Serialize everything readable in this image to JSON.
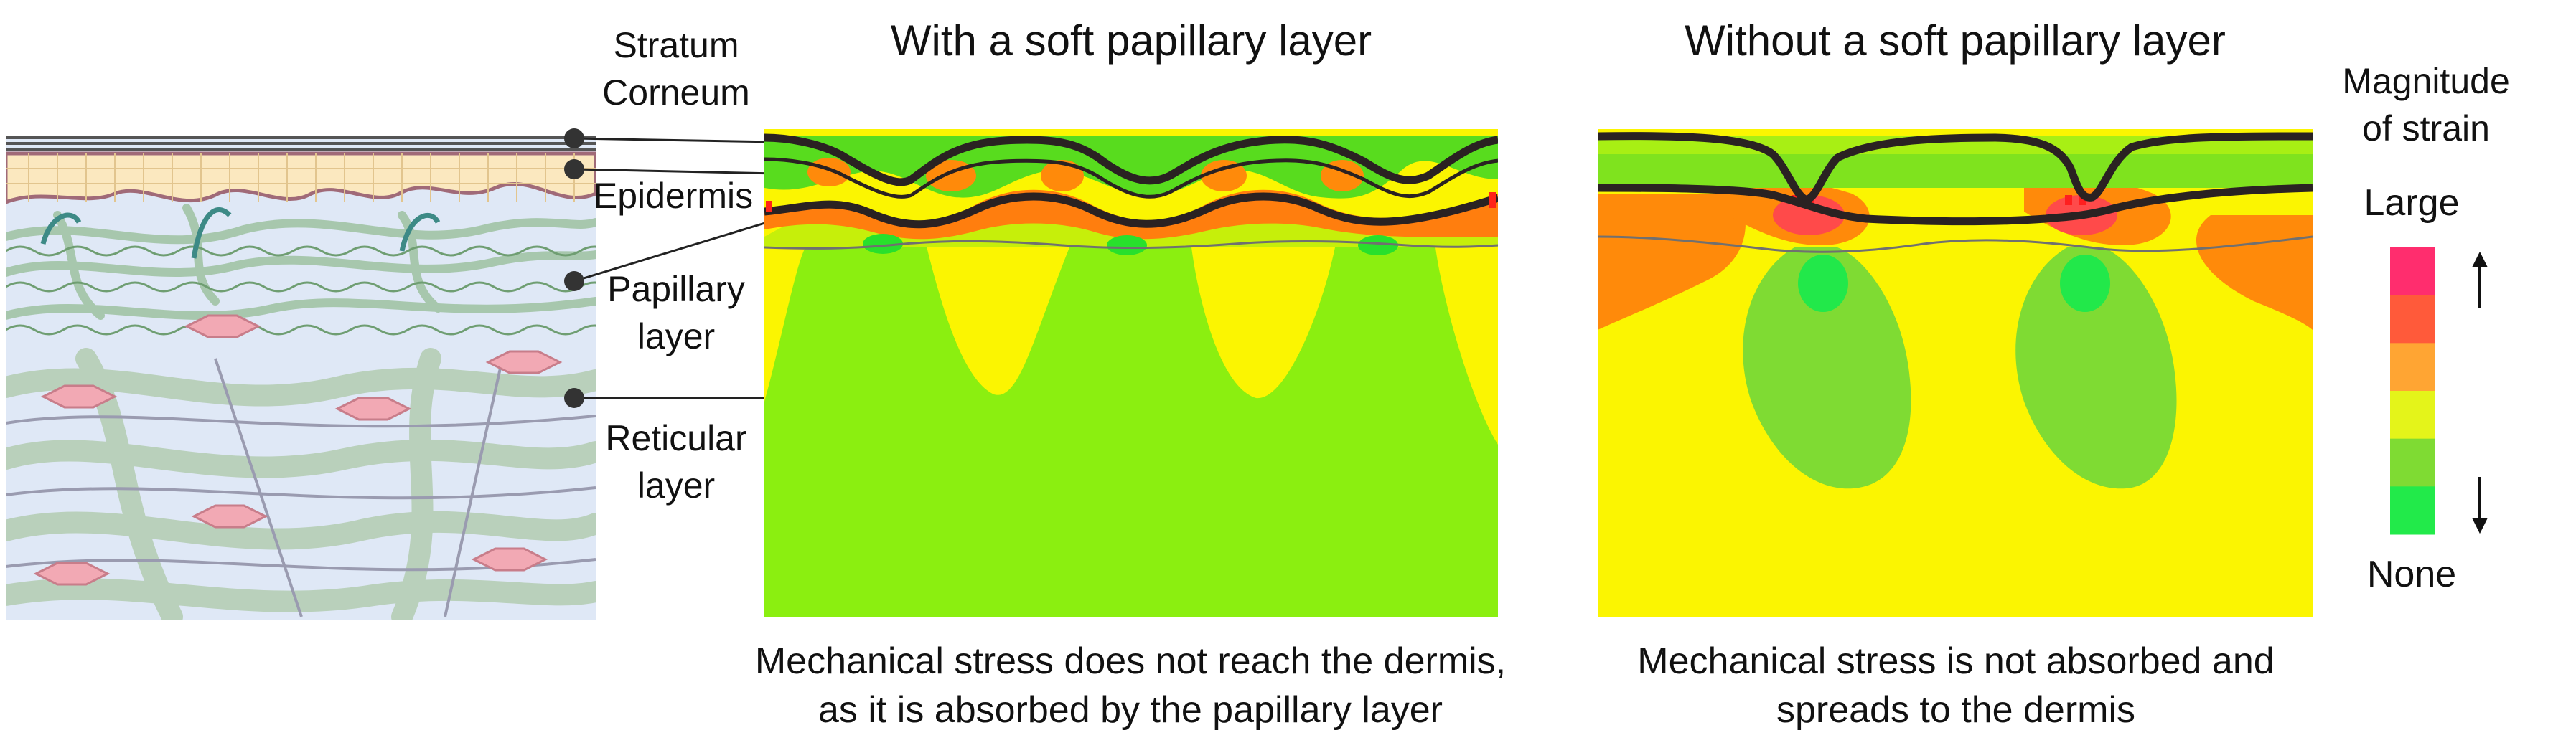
{
  "skin_labels": {
    "stratum_corneum": [
      "Stratum",
      "Corneum"
    ],
    "epidermis": "Epidermis",
    "papillary": [
      "Papillary",
      "layer"
    ],
    "reticular": [
      "Reticular",
      "layer"
    ]
  },
  "panel_with": {
    "title": "With a soft papillary layer",
    "caption": [
      "Mechanical stress does not reach the dermis,",
      "as it is absorbed by the papillary layer"
    ]
  },
  "panel_without": {
    "title": "Without a soft papillary layer",
    "caption": [
      "Mechanical stress is not absorbed and",
      "spreads to the dermis"
    ]
  },
  "legend": {
    "title": [
      "Magnitude",
      "of strain"
    ],
    "high": "Large",
    "low": "None",
    "colors": [
      "#ff2d6e",
      "#ff5a3a",
      "#ffa533",
      "#e4f41a",
      "#7fdb33",
      "#22ea4a"
    ]
  }
}
